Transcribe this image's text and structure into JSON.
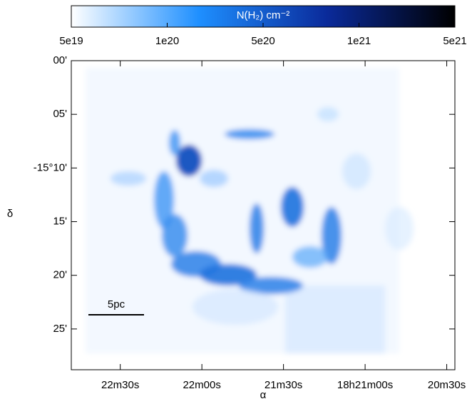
{
  "chart_data": {
    "type": "image-map",
    "colorbar": {
      "label": "N(H₂) cm⁻²",
      "colors": [
        "#ffffff",
        "#1e8fff",
        "#0a2a9a",
        "#000000"
      ],
      "ticks": [
        {
          "value": 5e+19,
          "label": "5e19"
        },
        {
          "value": 1e+20,
          "label": "1e20"
        },
        {
          "value": 5e+20,
          "label": "5e20"
        },
        {
          "value": 1e+21,
          "label": "1e21"
        },
        {
          "value": 5e+21,
          "label": "5e21"
        }
      ]
    },
    "x_label": "α",
    "y_label": "δ",
    "xlim": [
      66168,
      66027
    ],
    "xticks": [
      {
        "value": 66150,
        "label": "22m30s"
      },
      {
        "value": 66120,
        "label": "22m00s"
      },
      {
        "value": 66090,
        "label": "21m30s"
      },
      {
        "value": 66060,
        "label": "18h21m00s"
      },
      {
        "value": 66030,
        "label": "20m30s"
      }
    ],
    "ylim": [
      -15.48,
      -15.0
    ],
    "yticks": [
      {
        "value": -15.0,
        "label": "00'"
      },
      {
        "value": -15.083333,
        "label": "05'"
      },
      {
        "value": -15.166667,
        "label": "-15°10'"
      },
      {
        "value": -15.25,
        "label": "15'"
      },
      {
        "value": -15.333333,
        "label": "20'"
      },
      {
        "value": -15.416667,
        "label": "25'"
      }
    ],
    "scale_bar_label": "5pc"
  }
}
